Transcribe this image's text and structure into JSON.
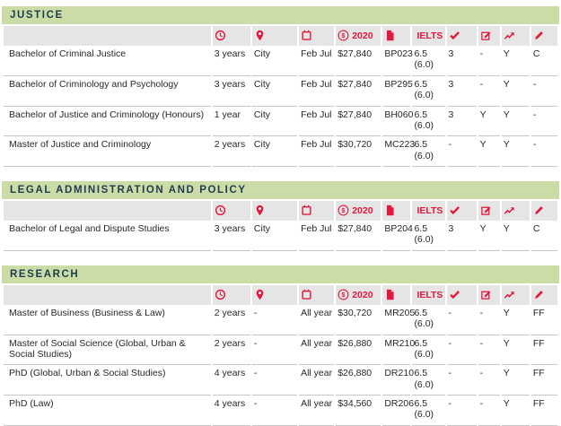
{
  "document": {
    "kind": "university-program-fee-table",
    "fee_year_label": "2020",
    "ielts_label": "IELTS"
  },
  "colors": {
    "section_header_bg": "#ccdca6",
    "section_header_text": "#1e3c50",
    "accent_red": "#e2183d",
    "header_band_bg": "#e5e5e5",
    "row_line": "#c6c6c6",
    "body_text": "#2a2725"
  },
  "columns": [
    {
      "id": "program",
      "icon": "",
      "label": ""
    },
    {
      "id": "duration",
      "icon": "clock-icon",
      "label": ""
    },
    {
      "id": "campus",
      "icon": "location-pin-icon",
      "label": ""
    },
    {
      "id": "intake",
      "icon": "calendar-icon",
      "label": ""
    },
    {
      "id": "fees",
      "icon": "dollar-circle-icon",
      "label": "2020"
    },
    {
      "id": "program-code",
      "icon": "document-icon",
      "label": ""
    },
    {
      "id": "ielts",
      "icon": "",
      "label": "IELTS"
    },
    {
      "id": "academic-entry",
      "icon": "checkmark-icon",
      "label": ""
    },
    {
      "id": "selection-task",
      "icon": "edit-note-icon",
      "label": ""
    },
    {
      "id": "pathway",
      "icon": "trending-up-arrow-icon",
      "label": ""
    },
    {
      "id": "credit",
      "icon": "pencil-icon",
      "label": ""
    }
  ],
  "sections": [
    {
      "title": "JUSTICE",
      "rows": [
        [
          "Bachelor of Criminal Justice",
          "3 years",
          "City",
          "Feb Jul",
          "$27,840",
          "BP023",
          "6.5 (6.0)",
          "3",
          "-",
          "Y",
          "C"
        ],
        [
          "Bachelor of Criminology and Psychology",
          "3 years",
          "City",
          "Feb Jul",
          "$27,840",
          "BP295",
          "6.5 (6.0)",
          "3",
          "-",
          "Y",
          "-"
        ],
        [
          "Bachelor of Justice and Criminology (Honours)",
          "1 year",
          "City",
          "Feb Jul",
          "$27,840",
          "BH060",
          "6.5 (6.0)",
          "3",
          "Y",
          "Y",
          "-"
        ],
        [
          "Master of Justice and Criminology",
          "2 years",
          "City",
          "Feb Jul",
          "$30,720",
          "MC223",
          "6.5 (6.0)",
          "-",
          "Y",
          "Y",
          "-"
        ]
      ]
    },
    {
      "title": "LEGAL ADMINISTRATION AND POLICY",
      "rows": [
        [
          "Bachelor of Legal and Dispute Studies",
          "3 years",
          "City",
          "Feb Jul",
          "$27,840",
          "BP204",
          "6.5 (6.0)",
          "3",
          "Y",
          "Y",
          "C"
        ]
      ]
    },
    {
      "title": "RESEARCH",
      "rows": [
        [
          "Master of Business (Business & Law)",
          "2 years",
          "-",
          "All year",
          "$30,720",
          "MR205",
          "6.5 (6.0)",
          "-",
          "-",
          "Y",
          "FF"
        ],
        [
          "Master of Social Science (Global, Urban & Social Studies)",
          "2 years",
          "-",
          "All year",
          "$26,880",
          "MR210",
          "6.5 (6.0)",
          "-",
          "-",
          "Y",
          "FF"
        ],
        [
          "PhD (Global, Urban & Social Studies)",
          "4 years",
          "-",
          "All year",
          "$26,880",
          "DR210",
          "6.5 (6.0)",
          "-",
          "-",
          "Y",
          "FF"
        ],
        [
          "PhD (Law)",
          "4 years",
          "-",
          "All year",
          "$34,560",
          "DR206",
          "6.5 (6.0)",
          "-",
          "-",
          "Y",
          "FF"
        ]
      ]
    }
  ]
}
